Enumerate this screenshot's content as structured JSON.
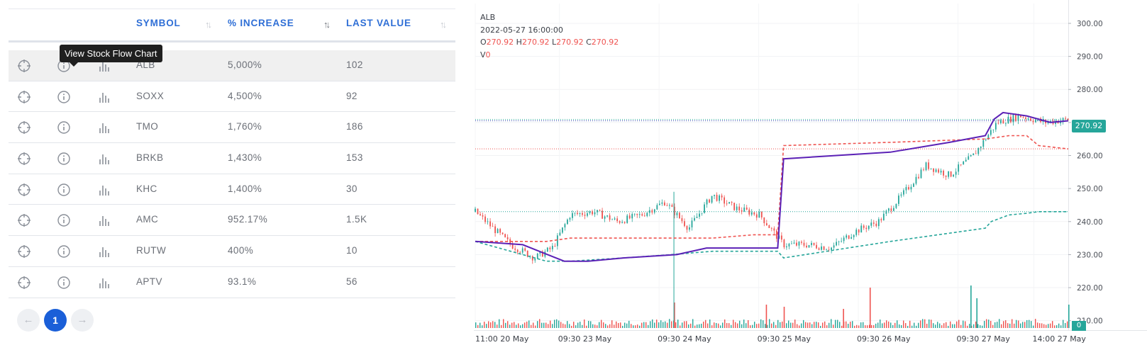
{
  "table": {
    "columns": [
      {
        "key": "symbol",
        "label": "SYMBOL"
      },
      {
        "key": "increase",
        "label": "% INCREASE"
      },
      {
        "key": "last_value",
        "label": "LAST VALUE"
      }
    ],
    "tooltip": "View Stock Flow Chart",
    "rows": [
      {
        "symbol": "ALB",
        "increase": "5,000%",
        "last_value": "102"
      },
      {
        "symbol": "SOXX",
        "increase": "4,500%",
        "last_value": "92"
      },
      {
        "symbol": "TMO",
        "increase": "1,760%",
        "last_value": "186"
      },
      {
        "symbol": "BRKB",
        "increase": "1,430%",
        "last_value": "153"
      },
      {
        "symbol": "KHC",
        "increase": "1,400%",
        "last_value": "30"
      },
      {
        "symbol": "AMC",
        "increase": "952.17%",
        "last_value": "1.5K"
      },
      {
        "symbol": "RUTW",
        "increase": "400%",
        "last_value": "10"
      },
      {
        "symbol": "APTV",
        "increase": "93.1%",
        "last_value": "56"
      }
    ],
    "icons": [
      "crosshair-icon",
      "info-icon",
      "bar-chart-icon"
    ]
  },
  "pagination": {
    "prev": "←",
    "current": "1",
    "next": "→"
  },
  "chart": {
    "symbol": "ALB",
    "datetime": "2022-05-27 16:00:00",
    "ohlc": {
      "o_label": "O",
      "o": "270.92",
      "h_label": "H",
      "h": "270.92",
      "l_label": "L",
      "l": "270.92",
      "c_label": "C",
      "c": "270.92"
    },
    "volume": {
      "label": "V",
      "value": "0"
    },
    "last_price_badge": "270.92",
    "volume_badge": "0",
    "colors": {
      "up": "#26a69a",
      "down": "#ef5350",
      "vwap": "#5b21b6",
      "accent": "#2f6fd6"
    }
  },
  "chart_data": {
    "type": "line",
    "title": "ALB",
    "y_axis": {
      "ticks": [
        "300.00",
        "290.00",
        "280.00",
        "270.00",
        "260.00",
        "250.00",
        "240.00",
        "230.00",
        "220.00",
        "210.00"
      ],
      "ylim": [
        208,
        306
      ]
    },
    "x_axis": {
      "labels": [
        "11:00 20 May",
        "09:30 23 May",
        "09:30 24 May",
        "09:30 25 May",
        "09:30 26 May",
        "09:30 27 May",
        "14:00 27 May"
      ]
    },
    "price_lines": {
      "last": 270.92,
      "upper_ref": 270.5,
      "red_ref": 262,
      "green_ref": 243
    },
    "series": [
      {
        "name": "price",
        "x": [
          0,
          3,
          6,
          10,
          13,
          16,
          20,
          24,
          28,
          32,
          36,
          40,
          44,
          48,
          52,
          56,
          60,
          64,
          68,
          72,
          76,
          80,
          84,
          88,
          92,
          96,
          100
        ],
        "values": [
          243,
          238,
          233,
          229,
          232,
          242,
          243,
          240,
          242,
          246,
          238,
          248,
          244,
          242,
          233,
          233,
          232,
          237,
          240,
          248,
          257,
          254,
          260,
          270,
          272,
          270,
          270.92
        ]
      },
      {
        "name": "vwap",
        "x": [
          0,
          8,
          15,
          19,
          25,
          34,
          39,
          47,
          51,
          52,
          70,
          80,
          86,
          87.5,
          89,
          93,
          97,
          100
        ],
        "values": [
          234,
          233,
          228,
          228,
          229,
          230,
          232,
          232,
          232,
          259,
          261,
          264,
          266,
          271,
          273,
          272,
          270,
          270.5
        ]
      },
      {
        "name": "upper-band",
        "x": [
          0,
          12,
          16,
          25,
          33,
          40,
          47,
          51,
          52,
          70,
          86,
          90,
          93,
          95,
          100
        ],
        "values": [
          234,
          234,
          235,
          235,
          235,
          235,
          236,
          236,
          263,
          264,
          265,
          266,
          266,
          263,
          262
        ]
      },
      {
        "name": "lower-band",
        "x": [
          0,
          12,
          16,
          25,
          33,
          40,
          47,
          51,
          52,
          70,
          86,
          87,
          90,
          93,
          95,
          100
        ],
        "values": [
          234,
          228,
          228,
          229,
          230,
          231,
          231,
          231,
          229,
          234,
          238,
          240,
          242,
          242.5,
          243,
          243
        ]
      }
    ],
    "volume_spikes": [
      {
        "x": 33.5,
        "v": 0.6
      },
      {
        "x": 49,
        "v": 0.55
      },
      {
        "x": 52,
        "v": 0.5
      },
      {
        "x": 62,
        "v": 0.45
      },
      {
        "x": 66.5,
        "v": 0.95
      },
      {
        "x": 83.5,
        "v": 1.0
      },
      {
        "x": 84.5,
        "v": 0.7
      },
      {
        "x": 100,
        "v": 0.55
      }
    ]
  }
}
